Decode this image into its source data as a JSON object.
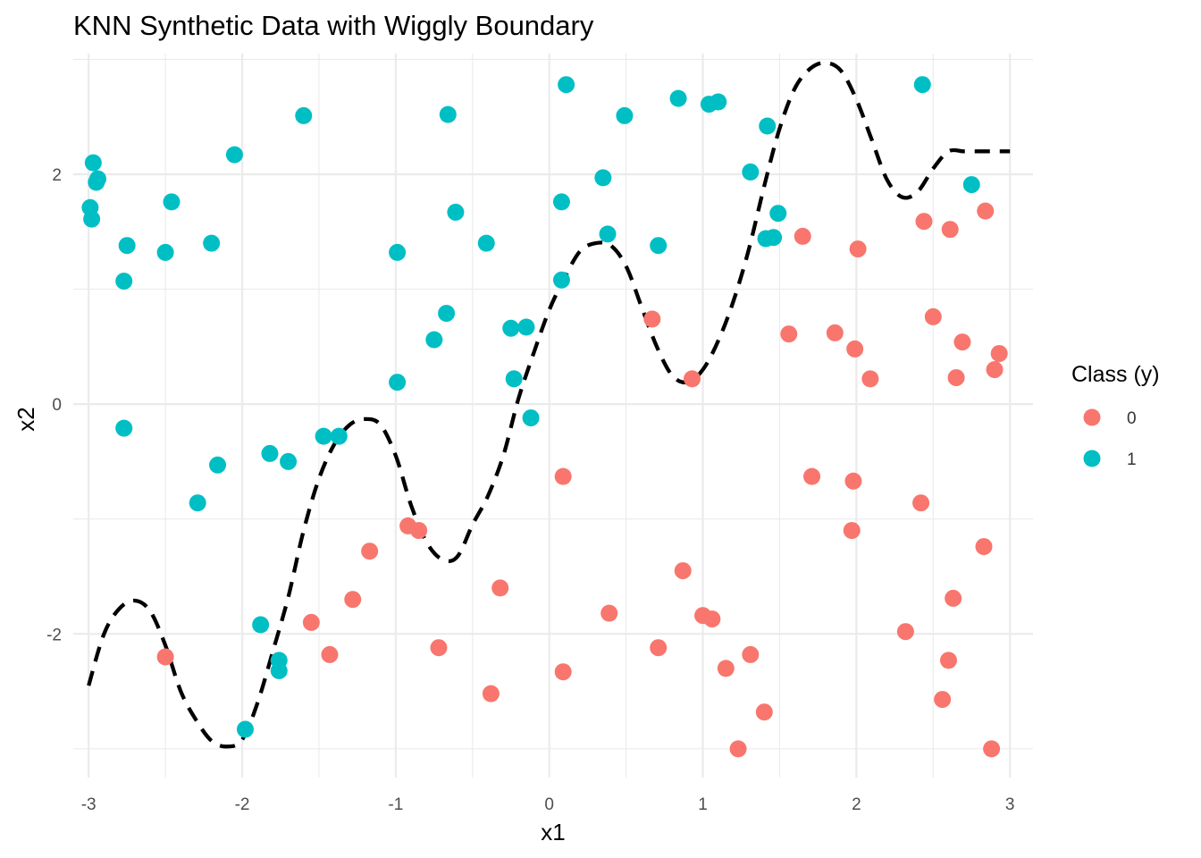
{
  "chart_data": {
    "type": "scatter",
    "title": "KNN Synthetic Data with Wiggly Boundary",
    "xlabel": "x1",
    "ylabel": "x2",
    "xlim": [
      -3.1,
      3.15
    ],
    "ylim": [
      -3.25,
      3.05
    ],
    "x_ticks": [
      -3,
      -2,
      -1,
      0,
      1,
      2,
      3
    ],
    "x_tick_labels": [
      "-3",
      "-2",
      "-1",
      "0",
      "1",
      "2",
      "3"
    ],
    "y_ticks": [
      -2,
      0,
      2
    ],
    "y_tick_labels": [
      "-2",
      "0",
      "2"
    ],
    "grid": true,
    "legend": {
      "title": "Class (y)",
      "position": "right",
      "entries": [
        {
          "label": "0",
          "color": "#F8766D"
        },
        {
          "label": "1",
          "color": "#00BFC4"
        }
      ]
    },
    "boundary": {
      "style": "dashed",
      "color": "#000000",
      "x": [
        -3.0,
        -2.9,
        -2.8,
        -2.7,
        -2.6,
        -2.5,
        -2.4,
        -2.3,
        -2.2,
        -2.1,
        -2.0,
        -1.9,
        -1.8,
        -1.7,
        -1.6,
        -1.5,
        -1.4,
        -1.3,
        -1.2,
        -1.1,
        -1.0,
        -0.9,
        -0.8,
        -0.7,
        -0.6,
        -0.5,
        -0.4,
        -0.3,
        -0.2,
        -0.1,
        0.0,
        0.1,
        0.2,
        0.3,
        0.4,
        0.5,
        0.6,
        0.7,
        0.8,
        0.9,
        1.0,
        1.1,
        1.2,
        1.3,
        1.4,
        1.5,
        1.6,
        1.7,
        1.8,
        1.9,
        2.0,
        2.1,
        2.2,
        2.3,
        2.4,
        2.5,
        2.6,
        2.7,
        2.8,
        2.9,
        3.0
      ],
      "y": [
        -2.45,
        -2.0,
        -1.78,
        -1.71,
        -1.8,
        -2.1,
        -2.5,
        -2.75,
        -2.93,
        -2.98,
        -2.92,
        -2.6,
        -2.15,
        -1.68,
        -1.1,
        -0.65,
        -0.35,
        -0.18,
        -0.13,
        -0.18,
        -0.45,
        -0.88,
        -1.2,
        -1.35,
        -1.33,
        -1.05,
        -0.8,
        -0.45,
        0.05,
        0.45,
        0.82,
        1.1,
        1.33,
        1.4,
        1.38,
        1.2,
        0.85,
        0.5,
        0.25,
        0.19,
        0.3,
        0.55,
        0.9,
        1.35,
        1.9,
        2.4,
        2.75,
        2.92,
        2.97,
        2.9,
        2.65,
        2.3,
        1.95,
        1.8,
        1.85,
        2.05,
        2.2,
        2.2,
        2.2,
        2.2,
        2.2
      ]
    },
    "series": [
      {
        "name": "0",
        "color": "#F8766D",
        "points": [
          [
            -2.5,
            -2.2
          ],
          [
            -1.55,
            -1.9
          ],
          [
            -1.43,
            -2.18
          ],
          [
            -1.28,
            -1.7
          ],
          [
            -1.17,
            -1.28
          ],
          [
            -0.92,
            -1.06
          ],
          [
            -0.85,
            -1.1
          ],
          [
            -0.72,
            -2.12
          ],
          [
            -0.38,
            -2.52
          ],
          [
            -0.32,
            -1.6
          ],
          [
            0.09,
            -0.63
          ],
          [
            0.09,
            -2.33
          ],
          [
            0.39,
            -1.82
          ],
          [
            0.67,
            0.74
          ],
          [
            0.71,
            -2.12
          ],
          [
            0.87,
            -1.45
          ],
          [
            0.93,
            0.22
          ],
          [
            1.0,
            -1.84
          ],
          [
            1.06,
            -1.87
          ],
          [
            1.15,
            -2.3
          ],
          [
            1.23,
            -3.0
          ],
          [
            1.31,
            -2.18
          ],
          [
            1.4,
            -2.68
          ],
          [
            1.56,
            0.61
          ],
          [
            1.65,
            1.46
          ],
          [
            1.71,
            -0.63
          ],
          [
            1.86,
            0.62
          ],
          [
            1.97,
            -1.1
          ],
          [
            1.98,
            -0.67
          ],
          [
            1.99,
            0.48
          ],
          [
            2.01,
            1.35
          ],
          [
            2.09,
            0.22
          ],
          [
            2.32,
            -1.98
          ],
          [
            2.42,
            -0.86
          ],
          [
            2.44,
            1.59
          ],
          [
            2.5,
            0.76
          ],
          [
            2.56,
            -2.57
          ],
          [
            2.6,
            -2.23
          ],
          [
            2.61,
            1.52
          ],
          [
            2.63,
            -1.69
          ],
          [
            2.65,
            0.23
          ],
          [
            2.69,
            0.54
          ],
          [
            2.83,
            -1.24
          ],
          [
            2.84,
            1.68
          ],
          [
            2.88,
            -3.0
          ],
          [
            2.9,
            0.3
          ],
          [
            2.93,
            0.44
          ]
        ]
      },
      {
        "name": "1",
        "color": "#00BFC4",
        "points": [
          [
            -2.99,
            1.71
          ],
          [
            -2.98,
            1.61
          ],
          [
            -2.97,
            2.1
          ],
          [
            -2.95,
            1.93
          ],
          [
            -2.94,
            1.96
          ],
          [
            -2.77,
            1.07
          ],
          [
            -2.77,
            -0.21
          ],
          [
            -2.75,
            1.38
          ],
          [
            -2.5,
            1.32
          ],
          [
            -2.46,
            1.76
          ],
          [
            -2.29,
            -0.86
          ],
          [
            -2.2,
            1.4
          ],
          [
            -2.16,
            -0.53
          ],
          [
            -2.05,
            2.17
          ],
          [
            -1.98,
            -2.83
          ],
          [
            -1.88,
            -1.92
          ],
          [
            -1.82,
            -0.43
          ],
          [
            -1.76,
            -2.23
          ],
          [
            -1.76,
            -2.32
          ],
          [
            -1.7,
            -0.5
          ],
          [
            -1.6,
            2.51
          ],
          [
            -1.47,
            -0.28
          ],
          [
            -1.37,
            -0.28
          ],
          [
            -0.99,
            1.32
          ],
          [
            -0.99,
            0.19
          ],
          [
            -0.75,
            0.56
          ],
          [
            -0.67,
            0.79
          ],
          [
            -0.66,
            2.52
          ],
          [
            -0.61,
            1.67
          ],
          [
            -0.41,
            1.4
          ],
          [
            -0.25,
            0.66
          ],
          [
            -0.23,
            0.22
          ],
          [
            -0.15,
            0.67
          ],
          [
            -0.12,
            -0.12
          ],
          [
            0.08,
            1.76
          ],
          [
            0.08,
            1.08
          ],
          [
            0.11,
            2.78
          ],
          [
            0.35,
            1.97
          ],
          [
            0.38,
            1.48
          ],
          [
            0.49,
            2.51
          ],
          [
            0.71,
            1.38
          ],
          [
            0.84,
            2.66
          ],
          [
            1.04,
            2.61
          ],
          [
            1.1,
            2.63
          ],
          [
            1.31,
            2.02
          ],
          [
            1.41,
            1.44
          ],
          [
            1.42,
            2.42
          ],
          [
            1.46,
            1.45
          ],
          [
            1.49,
            1.66
          ],
          [
            2.43,
            2.78
          ],
          [
            2.75,
            1.91
          ]
        ]
      }
    ]
  }
}
